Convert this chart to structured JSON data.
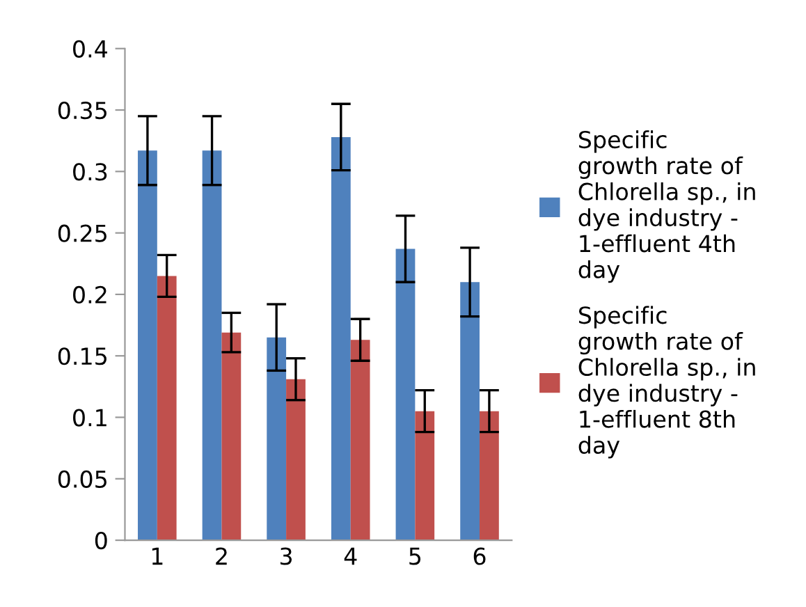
{
  "chart_data": {
    "type": "bar",
    "categories": [
      "1",
      "2",
      "3",
      "4",
      "5",
      "6"
    ],
    "series": [
      {
        "name": "Specific\ngrowth rate of\nChlorella sp., in\ndye industry -\n1-effluent 4th\nday",
        "color": "#4f81bd",
        "values": [
          0.317,
          0.317,
          0.165,
          0.328,
          0.237,
          0.21
        ],
        "errors": [
          0.028,
          0.028,
          0.027,
          0.027,
          0.027,
          0.028
        ]
      },
      {
        "name": "Specific\ngrowth rate of\nChlorella sp., in\ndye industry -\n1-effluent 8th\nday",
        "color": "#c0504d",
        "values": [
          0.215,
          0.169,
          0.131,
          0.163,
          0.105,
          0.105
        ],
        "errors": [
          0.017,
          0.016,
          0.017,
          0.017,
          0.017,
          0.017
        ]
      }
    ],
    "ylim": [
      0,
      0.4
    ],
    "yticks": [
      0,
      0.05,
      0.1,
      0.15,
      0.2,
      0.25,
      0.3,
      0.35,
      0.4
    ],
    "grid": false,
    "legend": "right"
  }
}
